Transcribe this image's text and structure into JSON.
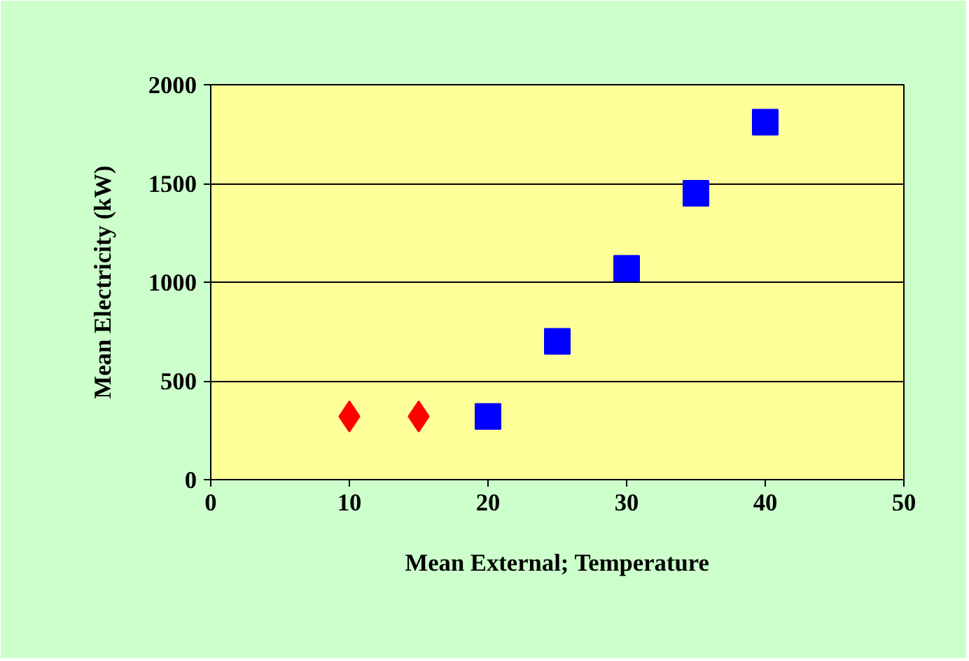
{
  "chart_data": {
    "type": "scatter",
    "xlabel": "Mean External; Temperature",
    "ylabel": "Mean Electricity (kW)",
    "xlim": [
      0,
      50
    ],
    "xticks": [
      0,
      10,
      20,
      30,
      40,
      50
    ],
    "ylim": [
      0,
      2000
    ],
    "yticks": [
      0,
      500,
      1000,
      1500,
      2000
    ],
    "grid": "y",
    "series": [
      {
        "color": "#ff0000",
        "marker": "diamond",
        "x": [
          10,
          15
        ],
        "values": [
          320,
          320
        ]
      },
      {
        "color": "#0000ff",
        "marker": "square",
        "x": [
          20,
          25,
          30,
          35,
          40
        ],
        "values": [
          320,
          700,
          1070,
          1450,
          1810
        ]
      }
    ]
  }
}
